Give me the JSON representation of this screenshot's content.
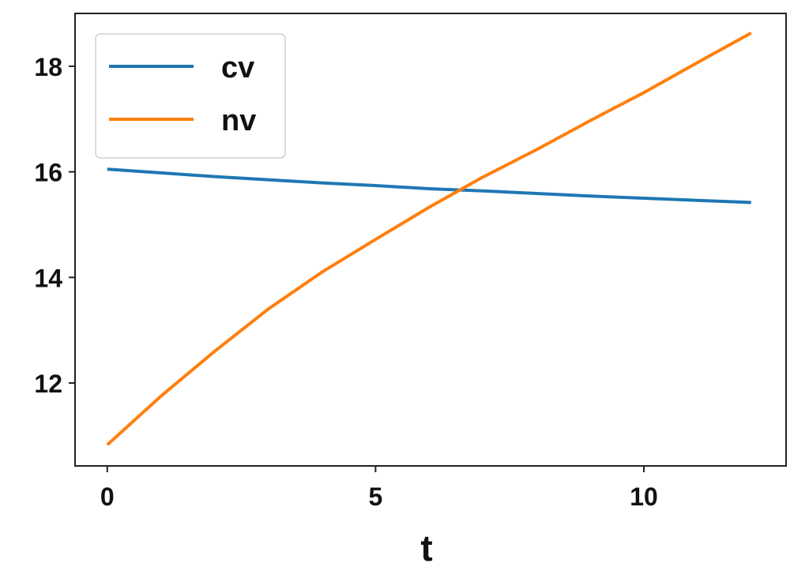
{
  "chart_data": {
    "type": "line",
    "title": "",
    "xlabel": "t",
    "ylabel": "",
    "xlim": [
      -0.6,
      12.65
    ],
    "ylim": [
      10.43,
      19.0
    ],
    "xticks": [
      0,
      5,
      10
    ],
    "xtick_labels": [
      "0",
      "5",
      "10"
    ],
    "yticks": [
      12,
      14,
      16,
      18
    ],
    "ytick_labels": [
      "12",
      "14",
      "16",
      "18"
    ],
    "grid": false,
    "legend_position": "top-left",
    "x": [
      0,
      1,
      2,
      3,
      4,
      5,
      6,
      7,
      8,
      9,
      10,
      11,
      12
    ],
    "series": [
      {
        "name": "cv",
        "color": "#1f77b4",
        "values": [
          16.05,
          15.98,
          15.91,
          15.85,
          15.79,
          15.74,
          15.68,
          15.64,
          15.59,
          15.54,
          15.5,
          15.46,
          15.42
        ]
      },
      {
        "name": "nv",
        "color": "#ff7f0e",
        "values": [
          10.83,
          11.75,
          12.6,
          13.4,
          14.1,
          14.72,
          15.33,
          15.9,
          16.42,
          16.97,
          17.5,
          18.07,
          18.63
        ]
      }
    ]
  }
}
